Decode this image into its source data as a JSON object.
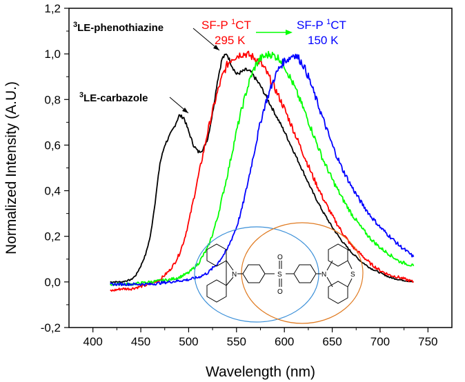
{
  "chart_data": {
    "type": "line",
    "xlabel": "Wavelength (nm)",
    "ylabel": "Normalized Intensity (A.U.)",
    "xlim": [
      375,
      775
    ],
    "ylim": [
      -0.2,
      1.2
    ],
    "x_ticks": [
      {
        "value": 400,
        "label": "400"
      },
      {
        "value": 450,
        "label": "450"
      },
      {
        "value": 500,
        "label": "500"
      },
      {
        "value": 550,
        "label": "550"
      },
      {
        "value": 600,
        "label": "600"
      },
      {
        "value": 650,
        "label": "650"
      },
      {
        "value": 700,
        "label": "700"
      },
      {
        "value": 750,
        "label": "750"
      }
    ],
    "y_ticks": [
      {
        "value": -0.2,
        "label": "-0,2"
      },
      {
        "value": 0.0,
        "label": "0,0"
      },
      {
        "value": 0.2,
        "label": "0,2"
      },
      {
        "value": 0.4,
        "label": "0,4"
      },
      {
        "value": 0.6,
        "label": "0,6"
      },
      {
        "value": 0.8,
        "label": "0,8"
      },
      {
        "value": 1.0,
        "label": "1,0"
      },
      {
        "value": 1.2,
        "label": "1,2"
      }
    ],
    "grid": false,
    "series": [
      {
        "color": "#000000",
        "x": [
          418,
          430,
          440,
          445,
          450,
          455,
          460,
          465,
          470,
          475,
          480,
          485,
          490,
          495,
          500,
          505,
          510,
          515,
          520,
          525,
          530,
          535,
          540,
          545,
          550,
          555,
          560,
          565,
          570,
          575,
          580,
          590,
          600,
          610,
          620,
          630,
          640,
          650,
          660,
          670,
          680,
          690,
          700,
          710,
          720,
          735
        ],
        "y": [
          0.0,
          0.0,
          0.01,
          0.03,
          0.07,
          0.12,
          0.2,
          0.35,
          0.52,
          0.6,
          0.64,
          0.68,
          0.73,
          0.72,
          0.66,
          0.6,
          0.57,
          0.58,
          0.63,
          0.74,
          0.88,
          0.98,
          1.0,
          0.95,
          0.91,
          0.92,
          0.93,
          0.92,
          0.89,
          0.86,
          0.82,
          0.74,
          0.66,
          0.57,
          0.48,
          0.39,
          0.31,
          0.24,
          0.18,
          0.13,
          0.09,
          0.06,
          0.04,
          0.02,
          0.01,
          0.0
        ]
      },
      {
        "color": "#ff0000",
        "x": [
          418,
          430,
          440,
          450,
          460,
          465,
          470,
          475,
          480,
          485,
          490,
          495,
          500,
          505,
          510,
          515,
          520,
          525,
          530,
          535,
          540,
          545,
          550,
          555,
          560,
          565,
          570,
          575,
          580,
          590,
          600,
          610,
          620,
          630,
          640,
          650,
          660,
          670,
          680,
          690,
          700,
          710,
          720,
          735
        ],
        "y": [
          -0.04,
          -0.03,
          -0.03,
          -0.02,
          -0.01,
          0.0,
          0.01,
          0.03,
          0.05,
          0.08,
          0.12,
          0.18,
          0.26,
          0.36,
          0.46,
          0.56,
          0.66,
          0.75,
          0.83,
          0.9,
          0.95,
          0.98,
          0.99,
          1.0,
          1.0,
          0.99,
          0.98,
          0.96,
          0.93,
          0.85,
          0.76,
          0.66,
          0.56,
          0.46,
          0.37,
          0.29,
          0.22,
          0.16,
          0.12,
          0.08,
          0.05,
          0.03,
          0.02,
          0.0
        ]
      },
      {
        "color": "#00ff00",
        "x": [
          418,
          440,
          460,
          480,
          490,
          500,
          510,
          520,
          525,
          530,
          535,
          540,
          545,
          550,
          555,
          560,
          565,
          570,
          575,
          580,
          585,
          590,
          595,
          600,
          610,
          620,
          630,
          640,
          650,
          660,
          670,
          680,
          690,
          700,
          710,
          720,
          735
        ],
        "y": [
          -0.01,
          -0.01,
          0.0,
          0.01,
          0.02,
          0.04,
          0.08,
          0.15,
          0.21,
          0.28,
          0.37,
          0.46,
          0.56,
          0.66,
          0.75,
          0.83,
          0.9,
          0.95,
          0.98,
          0.99,
          1.0,
          0.99,
          0.98,
          0.95,
          0.86,
          0.76,
          0.65,
          0.54,
          0.45,
          0.37,
          0.3,
          0.24,
          0.19,
          0.15,
          0.12,
          0.09,
          0.07
        ]
      },
      {
        "color": "#0000ff",
        "x": [
          418,
          440,
          460,
          480,
          500,
          510,
          520,
          530,
          540,
          550,
          555,
          560,
          565,
          570,
          575,
          580,
          585,
          590,
          595,
          600,
          605,
          610,
          615,
          620,
          625,
          630,
          640,
          650,
          660,
          670,
          680,
          690,
          700,
          710,
          720,
          735
        ],
        "y": [
          -0.01,
          -0.01,
          -0.01,
          0.0,
          0.01,
          0.02,
          0.04,
          0.08,
          0.14,
          0.24,
          0.31,
          0.4,
          0.5,
          0.6,
          0.7,
          0.78,
          0.84,
          0.9,
          0.94,
          0.97,
          0.98,
          1.0,
          0.98,
          0.95,
          0.9,
          0.84,
          0.72,
          0.6,
          0.5,
          0.42,
          0.35,
          0.29,
          0.24,
          0.2,
          0.16,
          0.11
        ]
      }
    ],
    "annotations": [
      {
        "text": "LE-phenothiazine",
        "sup": "3"
      },
      {
        "text": "LE-carbazole",
        "sup": "3"
      },
      {
        "text": "SF-P ",
        "sup": "1",
        "tail": "CT",
        "line2": "295 K",
        "color": "#ff0000"
      },
      {
        "text": "SF-P ",
        "sup": "1",
        "tail": "CT",
        "line2": "150 K",
        "color": "#0000ff"
      }
    ],
    "molecule_labels": {
      "n_left": "N",
      "s_center": "S",
      "o_top": "O",
      "o_bottom": "O",
      "n_right": "N",
      "s_right": "S"
    }
  }
}
